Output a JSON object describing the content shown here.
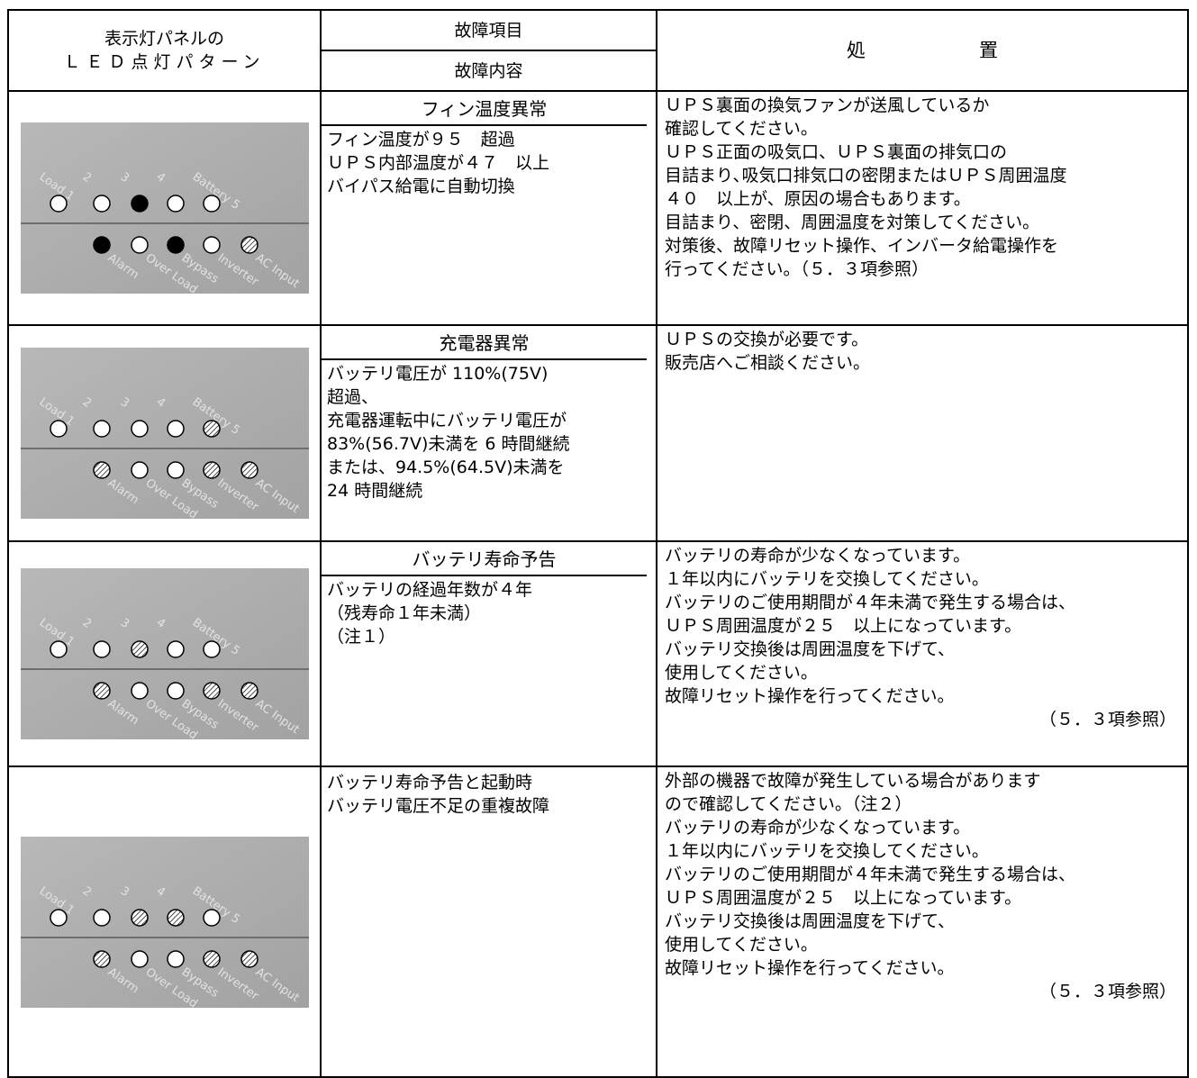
{
  "header": {
    "col1": [
      "表示灯パネルの",
      "ＬＥＤ点灯パターン"
    ],
    "col2_item": "故障項目",
    "col2_content": "故障内容",
    "col3": "処　　　　　　置"
  },
  "panel_labels": {
    "top": [
      "Load 1",
      "2",
      "3",
      "4",
      "Battery 5"
    ],
    "bottom": [
      "Alarm",
      "Over Load",
      "Bypass",
      "Inverter",
      "AC Input"
    ]
  },
  "rows": [
    {
      "item": [
        "フィン温度異常"
      ],
      "content": [
        "フィン温度が９５　超過",
        "ＵＰＳ内部温度が４７　以上",
        "バイパス給電に自動切換"
      ],
      "action": [
        "ＵＰＳ裏面の換気ファンが送風しているか",
        "確認してください。",
        "ＵＰＳ正面の吸気口、ＵＰＳ裏面の排気口の",
        "目詰まり､吸気口排気口の密閉またはＵＰＳ周囲温度",
        "４０　以上が、原因の場合もあります。",
        "目詰まり、密閉、周囲温度を対策してください。",
        "対策後、故障リセット操作、インバータ給電操作を",
        "行ってください。（５．３項参照）"
      ]
    },
    {
      "item": [
        "充電器異常"
      ],
      "content": [
        "バッテリ電圧が 110%(75V)",
        "超過、",
        "充電器運転中にバッテリ電圧が",
        "83%(56.7V)未満を 6 時間継続",
        "または、94.5%(64.5V)未満を",
        "24 時間継続"
      ],
      "action": [
        "ＵＰＳの交換が必要です。",
        "販売店へご相談ください。"
      ]
    },
    {
      "item": [
        "バッテリ寿命予告"
      ],
      "content": [
        "バッテリの経過年数が４年",
        "（残寿命１年未満）",
        "（注１）"
      ],
      "action": [
        "バッテリの寿命が少なくなっています。",
        "１年以内にバッテリを交換してください。",
        "バッテリのご使用期間が４年未満で発生する場合は、",
        "ＵＰＳ周囲温度が２５　以上になっています。",
        "バッテリ交換後は周囲温度を下げて、",
        "使用してください。",
        "故障リセット操作を行ってください。"
      ],
      "action_note": "（５．３項参照）"
    },
    {
      "item": [
        "バッテリ寿命予告と起動時",
        "バッテリ電圧不足の重複故障"
      ],
      "action": [
        "外部の機器で故障が発生している場合があります",
        "ので確認してください。（注２）",
        "バッテリの寿命が少なくなっています。",
        "１年以内にバッテリを交換してください。",
        "バッテリのご使用期間が４年未満で発生する場合は、",
        "ＵＰＳ周囲温度が２５　以上になっています。",
        "バッテリ交換後は周囲温度を下げて、",
        "使用してください。",
        "故障リセット操作を行ってください。"
      ],
      "action_note": "（５．３項参照）"
    }
  ]
}
